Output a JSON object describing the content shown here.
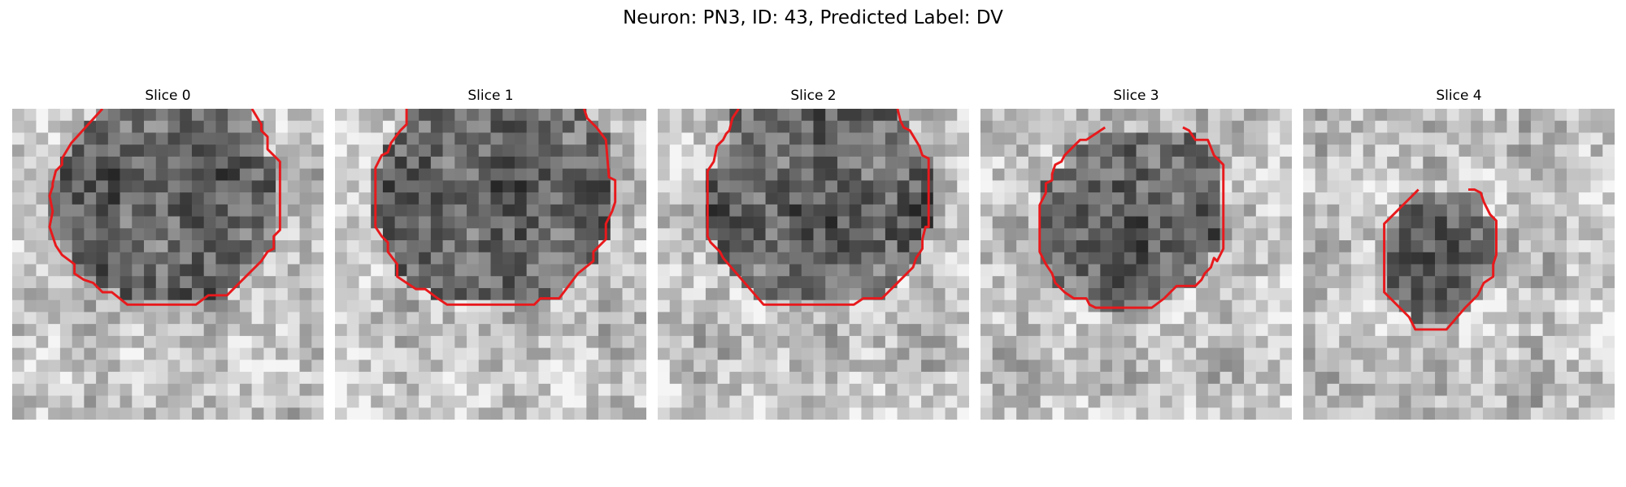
{
  "figure": {
    "title": "Neuron: PN3, ID: 43, Predicted Label: DV"
  },
  "panels": [
    {
      "title": "Slice 0",
      "seed": 101,
      "contour_color": "#e8191c",
      "contour": [
        [
          0.29,
          0.0
        ],
        [
          0.19,
          0.11
        ],
        [
          0.16,
          0.16
        ],
        [
          0.16,
          0.18
        ],
        [
          0.14,
          0.2
        ],
        [
          0.13,
          0.24
        ],
        [
          0.13,
          0.25
        ],
        [
          0.12,
          0.28
        ],
        [
          0.13,
          0.33
        ],
        [
          0.12,
          0.38
        ],
        [
          0.14,
          0.44
        ],
        [
          0.16,
          0.47
        ],
        [
          0.2,
          0.5
        ],
        [
          0.2,
          0.53
        ],
        [
          0.23,
          0.55
        ],
        [
          0.26,
          0.56
        ],
        [
          0.29,
          0.59
        ],
        [
          0.32,
          0.59
        ],
        [
          0.37,
          0.63
        ],
        [
          0.59,
          0.63
        ],
        [
          0.63,
          0.6
        ],
        [
          0.69,
          0.6
        ],
        [
          0.8,
          0.49
        ],
        [
          0.82,
          0.46
        ],
        [
          0.84,
          0.45
        ],
        [
          0.84,
          0.41
        ],
        [
          0.86,
          0.39
        ],
        [
          0.86,
          0.17
        ],
        [
          0.82,
          0.13
        ],
        [
          0.82,
          0.09
        ],
        [
          0.8,
          0.07
        ],
        [
          0.8,
          0.05
        ],
        [
          0.77,
          0.0
        ]
      ]
    },
    {
      "title": "Slice 1",
      "seed": 202,
      "contour_color": "#e8191c",
      "contour": [
        [
          0.23,
          0.0
        ],
        [
          0.23,
          0.05
        ],
        [
          0.21,
          0.07
        ],
        [
          0.18,
          0.11
        ],
        [
          0.17,
          0.14
        ],
        [
          0.15,
          0.15
        ],
        [
          0.13,
          0.19
        ],
        [
          0.13,
          0.38
        ],
        [
          0.15,
          0.41
        ],
        [
          0.17,
          0.43
        ],
        [
          0.17,
          0.46
        ],
        [
          0.2,
          0.5
        ],
        [
          0.2,
          0.54
        ],
        [
          0.23,
          0.56
        ],
        [
          0.26,
          0.58
        ],
        [
          0.29,
          0.58
        ],
        [
          0.33,
          0.61
        ],
        [
          0.36,
          0.63
        ],
        [
          0.64,
          0.63
        ],
        [
          0.66,
          0.61
        ],
        [
          0.72,
          0.61
        ],
        [
          0.78,
          0.53
        ],
        [
          0.83,
          0.49
        ],
        [
          0.83,
          0.46
        ],
        [
          0.87,
          0.42
        ],
        [
          0.87,
          0.37
        ],
        [
          0.89,
          0.33
        ],
        [
          0.9,
          0.3
        ],
        [
          0.9,
          0.23
        ],
        [
          0.88,
          0.22
        ],
        [
          0.87,
          0.1
        ],
        [
          0.84,
          0.06
        ],
        [
          0.81,
          0.03
        ],
        [
          0.8,
          0.0
        ]
      ]
    },
    {
      "title": "Slice 2",
      "seed": 303,
      "contour_color": "#e8191c",
      "contour": [
        [
          0.26,
          0.0
        ],
        [
          0.24,
          0.03
        ],
        [
          0.23,
          0.07
        ],
        [
          0.22,
          0.08
        ],
        [
          0.21,
          0.1
        ],
        [
          0.19,
          0.12
        ],
        [
          0.18,
          0.17
        ],
        [
          0.16,
          0.2
        ],
        [
          0.16,
          0.41
        ],
        [
          0.17,
          0.43
        ],
        [
          0.2,
          0.46
        ],
        [
          0.21,
          0.48
        ],
        [
          0.34,
          0.63
        ],
        [
          0.63,
          0.63
        ],
        [
          0.66,
          0.61
        ],
        [
          0.72,
          0.61
        ],
        [
          0.76,
          0.57
        ],
        [
          0.82,
          0.51
        ],
        [
          0.83,
          0.48
        ],
        [
          0.85,
          0.45
        ],
        [
          0.85,
          0.42
        ],
        [
          0.86,
          0.38
        ],
        [
          0.87,
          0.38
        ],
        [
          0.87,
          0.16
        ],
        [
          0.85,
          0.15
        ],
        [
          0.84,
          0.12
        ],
        [
          0.81,
          0.07
        ],
        [
          0.79,
          0.06
        ],
        [
          0.78,
          0.04
        ],
        [
          0.77,
          0.0
        ]
      ]
    },
    {
      "title": "Slice 3",
      "seed": 404,
      "contour_color": "#e8191c",
      "contour": [
        [
          0.4,
          0.06
        ],
        [
          0.34,
          0.1
        ],
        [
          0.32,
          0.1
        ],
        [
          0.3,
          0.12
        ],
        [
          0.27,
          0.15
        ],
        [
          0.26,
          0.17
        ],
        [
          0.24,
          0.18
        ],
        [
          0.23,
          0.21
        ],
        [
          0.23,
          0.23
        ],
        [
          0.21,
          0.24
        ],
        [
          0.21,
          0.27
        ],
        [
          0.2,
          0.29
        ],
        [
          0.19,
          0.31
        ],
        [
          0.19,
          0.46
        ],
        [
          0.21,
          0.5
        ],
        [
          0.23,
          0.53
        ],
        [
          0.24,
          0.56
        ],
        [
          0.27,
          0.59
        ],
        [
          0.3,
          0.61
        ],
        [
          0.34,
          0.61
        ],
        [
          0.35,
          0.63
        ],
        [
          0.37,
          0.64
        ],
        [
          0.55,
          0.64
        ],
        [
          0.59,
          0.61
        ],
        [
          0.61,
          0.59
        ],
        [
          0.63,
          0.57
        ],
        [
          0.69,
          0.57
        ],
        [
          0.71,
          0.55
        ],
        [
          0.72,
          0.53
        ],
        [
          0.74,
          0.51
        ],
        [
          0.75,
          0.48
        ],
        [
          0.76,
          0.49
        ],
        [
          0.78,
          0.45
        ],
        [
          0.78,
          0.18
        ],
        [
          0.75,
          0.15
        ],
        [
          0.73,
          0.1
        ],
        [
          0.69,
          0.1
        ],
        [
          0.67,
          0.07
        ],
        [
          0.65,
          0.06
        ]
      ]
    },
    {
      "title": "Slice 4",
      "seed": 505,
      "contour_color": "#e8191c",
      "contour": [
        [
          0.37,
          0.26
        ],
        [
          0.32,
          0.31
        ],
        [
          0.26,
          0.37
        ],
        [
          0.26,
          0.59
        ],
        [
          0.34,
          0.67
        ],
        [
          0.36,
          0.71
        ],
        [
          0.46,
          0.71
        ],
        [
          0.52,
          0.64
        ],
        [
          0.56,
          0.6
        ],
        [
          0.58,
          0.56
        ],
        [
          0.61,
          0.54
        ],
        [
          0.61,
          0.5
        ],
        [
          0.62,
          0.47
        ],
        [
          0.62,
          0.36
        ],
        [
          0.6,
          0.34
        ],
        [
          0.58,
          0.3
        ],
        [
          0.57,
          0.27
        ],
        [
          0.55,
          0.26
        ],
        [
          0.53,
          0.26
        ]
      ]
    }
  ]
}
